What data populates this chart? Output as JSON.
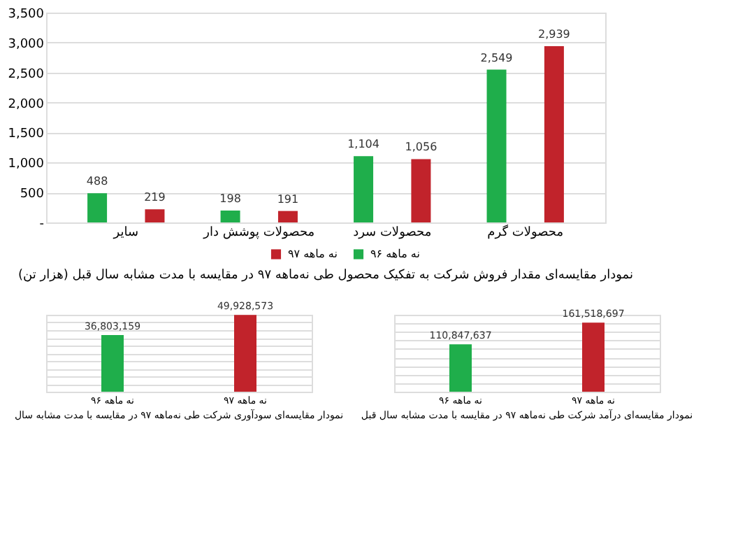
{
  "chart_data": [
    {
      "type": "bar",
      "title": "نمودار مقایسه‌ای مقدار فروش شرکت به تفکیک محصول طی نه‌ماهه ۹۷ در مقایسه با مدت مشابه سال قبل (هزار تن)",
      "categories": [
        "سایر",
        "محصولات پوشش دار",
        "محصولات سرد",
        "محصولات گرم"
      ],
      "series": [
        {
          "name": "نه ماهه ۹۶",
          "color": "#1fae4b",
          "values": [
            488,
            198,
            1104,
            2549
          ],
          "value_labels": [
            "488",
            "198",
            "1,104",
            "2,549"
          ]
        },
        {
          "name": "نه ماهه ۹۷",
          "color": "#c1232b",
          "values": [
            219,
            191,
            1056,
            2939
          ],
          "value_labels": [
            "219",
            "191",
            "1,056",
            "2,939"
          ]
        }
      ],
      "ylim": [
        0,
        3500
      ],
      "yticks": [
        {
          "value": 0,
          "label": "-"
        },
        {
          "value": 500,
          "label": "500"
        },
        {
          "value": 1000,
          "label": "1,000"
        },
        {
          "value": 1500,
          "label": "1,500"
        },
        {
          "value": 2000,
          "label": "2,000"
        },
        {
          "value": 2500,
          "label": "2,500"
        },
        {
          "value": 3000,
          "label": "3,000"
        },
        {
          "value": 3500,
          "label": "3,500"
        }
      ],
      "grid": "y",
      "legend": "bottom"
    },
    {
      "type": "bar",
      "title": "نمودار مقایسه‌ای سودآوری شرکت طی نه‌ماهه ۹۷ در مقایسه با مدت مشابه سال",
      "categories": [
        "نه ماهه ۹۶",
        "نه ماهه ۹۷"
      ],
      "values": [
        36803159,
        49928573
      ],
      "value_labels": [
        "36,803,159",
        "49,928,573"
      ],
      "colors": [
        "#1fae4b",
        "#c1232b"
      ],
      "tick_labels": "x",
      "grid": "y"
    },
    {
      "type": "bar",
      "title": "نمودار مقایسه‌ای درآمد شرکت طی نه‌ماهه ۹۷ در مقایسه با مدت مشابه سال قبل",
      "categories": [
        "نه ماهه ۹۶",
        "نه ماهه ۹۷"
      ],
      "values": [
        110847637,
        161518697
      ],
      "value_labels": [
        "110,847,637",
        "161,518,697"
      ],
      "colors": [
        "#1fae4b",
        "#c1232b"
      ],
      "tick_labels": "x",
      "grid": "y"
    }
  ]
}
